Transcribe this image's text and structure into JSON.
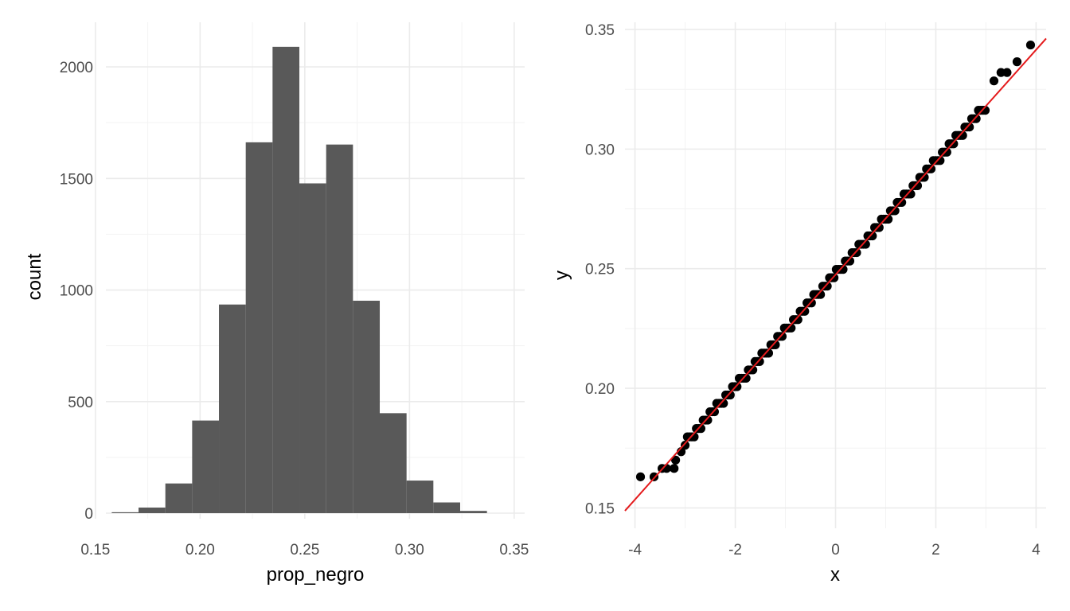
{
  "chart_data": [
    {
      "type": "bar",
      "subtype": "histogram",
      "xlabel": "prop_negro",
      "ylabel": "count",
      "xlim": [
        0.155,
        0.355
      ],
      "ylim": [
        -25,
        2200
      ],
      "x_ticks": [
        0.15,
        0.2,
        0.25,
        0.3,
        0.35
      ],
      "x_tick_labels": [
        "0.15",
        "0.20",
        "0.25",
        "0.30",
        "0.35"
      ],
      "y_ticks": [
        0,
        500,
        1000,
        1500,
        2000
      ],
      "y_tick_labels": [
        "0",
        "500",
        "1000",
        "1500",
        "2000"
      ],
      "bin_width": 0.0128,
      "bins": [
        {
          "x0": 0.1578,
          "x1": 0.1706,
          "count": 4
        },
        {
          "x0": 0.1706,
          "x1": 0.1834,
          "count": 25
        },
        {
          "x0": 0.1834,
          "x1": 0.1962,
          "count": 133
        },
        {
          "x0": 0.1962,
          "x1": 0.209,
          "count": 415
        },
        {
          "x0": 0.209,
          "x1": 0.2218,
          "count": 935
        },
        {
          "x0": 0.2218,
          "x1": 0.2346,
          "count": 1662
        },
        {
          "x0": 0.2346,
          "x1": 0.2474,
          "count": 2090
        },
        {
          "x0": 0.2474,
          "x1": 0.2602,
          "count": 1478
        },
        {
          "x0": 0.2602,
          "x1": 0.273,
          "count": 1652
        },
        {
          "x0": 0.273,
          "x1": 0.2858,
          "count": 952
        },
        {
          "x0": 0.2858,
          "x1": 0.2986,
          "count": 448
        },
        {
          "x0": 0.2986,
          "x1": 0.3114,
          "count": 146
        },
        {
          "x0": 0.3114,
          "x1": 0.3242,
          "count": 48
        },
        {
          "x0": 0.3242,
          "x1": 0.337,
          "count": 10
        }
      ],
      "bar_color": "#595959",
      "grid": true
    },
    {
      "type": "scatter",
      "subtype": "qq-plot",
      "xlabel": "x",
      "ylabel": "y",
      "xlim": [
        -4.2,
        4.2
      ],
      "ylim": [
        0.1415,
        0.353
      ],
      "x_ticks": [
        -4,
        -2,
        0,
        2,
        4
      ],
      "x_tick_labels": [
        "-4",
        "-2",
        "0",
        "2",
        "4"
      ],
      "y_ticks": [
        0.15,
        0.2,
        0.25,
        0.3,
        0.35
      ],
      "y_tick_labels": [
        "0.15",
        "0.20",
        "0.25",
        "0.30",
        "0.35"
      ],
      "reference_line": {
        "intercept": 0.2475,
        "slope": 0.0235,
        "color": "#e41a1c"
      },
      "tail_points": [
        {
          "x": -3.89,
          "y": 0.163
        },
        {
          "x": -3.62,
          "y": 0.163
        },
        {
          "x": -3.46,
          "y": 0.1665
        },
        {
          "x": -3.37,
          "y": 0.1665
        },
        {
          "x": -3.22,
          "y": 0.1665
        },
        {
          "x": -3.19,
          "y": 0.17
        },
        {
          "x": -3.08,
          "y": 0.1735
        },
        {
          "x": 3.16,
          "y": 0.3285
        },
        {
          "x": 3.3,
          "y": 0.332
        },
        {
          "x": 3.42,
          "y": 0.332
        },
        {
          "x": 3.62,
          "y": 0.3365
        },
        {
          "x": 3.89,
          "y": 0.3435
        }
      ],
      "body_points": {
        "x_from": -3.0,
        "x_to": 3.0,
        "intercept": 0.2475,
        "slope": 0.0235,
        "step": 0.0035
      },
      "point_color": "#000000",
      "grid": true
    }
  ]
}
